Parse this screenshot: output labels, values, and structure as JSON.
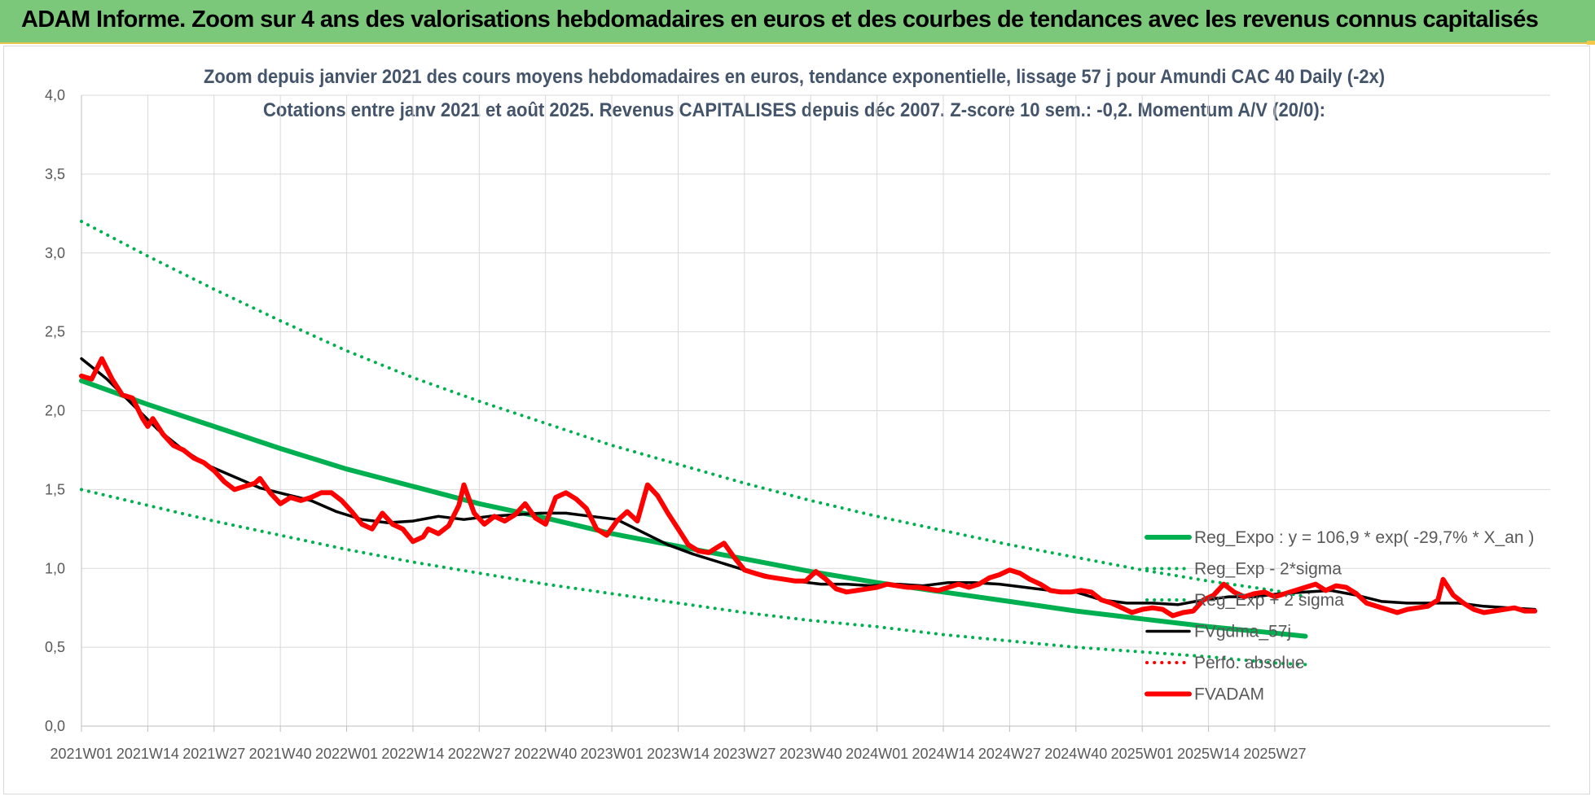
{
  "header": {
    "title": "ADAM Informe. Zoom sur 4 ans des valorisations hebdomadaires en euros et des courbes de tendances avec les revenus connus capitalisés"
  },
  "chart_data": {
    "type": "line",
    "title": "Zoom depuis janvier 2021 des cours moyens hebdomadaires en euros, tendance exponentielle, lissage 57 j pour Amundi CAC 40 Daily (-2x)",
    "subtitle": "Cotations entre janv 2021 et août 2025. Revenus CAPITALISES depuis déc 2007. Z-score 10 sem.: -0,2. Momentum A/V (20/0):",
    "xlabel": "",
    "ylabel": "",
    "ylim": [
      0,
      4
    ],
    "yticks": [
      "0,0",
      "0,5",
      "1,0",
      "1,5",
      "2,0",
      "2,5",
      "3,0",
      "3,5",
      "4,0"
    ],
    "xticks": [
      "2021W01",
      "2021W14",
      "2021W27",
      "2021W40",
      "2022W01",
      "2022W14",
      "2022W27",
      "2022W40",
      "2023W01",
      "2023W14",
      "2023W27",
      "2023W40",
      "2024W01",
      "2024W14",
      "2024W27",
      "2024W40",
      "2025W01",
      "2025W14",
      "2025W27"
    ],
    "grid": true,
    "legend_position": "right",
    "colors": {
      "green": "#00b050",
      "red": "#ff0000",
      "black": "#000000"
    },
    "series": [
      {
        "name": "Reg_Expo : y = 106,9 * exp( -29,7% * X_an )",
        "style": "solid-thick",
        "color": "#00b050",
        "points": [
          [
            0,
            2.19
          ],
          [
            13,
            2.04
          ],
          [
            26,
            1.9
          ],
          [
            39,
            1.76
          ],
          [
            52,
            1.63
          ],
          [
            65,
            1.52
          ],
          [
            78,
            1.41
          ],
          [
            91,
            1.32
          ],
          [
            104,
            1.22
          ],
          [
            117,
            1.14
          ],
          [
            130,
            1.06
          ],
          [
            143,
            0.98
          ],
          [
            156,
            0.91
          ],
          [
            169,
            0.85
          ],
          [
            182,
            0.79
          ],
          [
            195,
            0.73
          ],
          [
            208,
            0.68
          ],
          [
            221,
            0.63
          ],
          [
            234,
            0.59
          ],
          [
            240,
            0.57
          ]
        ]
      },
      {
        "name": "Reg_Exp - 2*sigma",
        "style": "dotted",
        "color": "#00b050",
        "points": [
          [
            0,
            1.5
          ],
          [
            13,
            1.4
          ],
          [
            26,
            1.3
          ],
          [
            39,
            1.21
          ],
          [
            52,
            1.12
          ],
          [
            65,
            1.04
          ],
          [
            78,
            0.97
          ],
          [
            91,
            0.9
          ],
          [
            104,
            0.84
          ],
          [
            117,
            0.78
          ],
          [
            130,
            0.72
          ],
          [
            143,
            0.67
          ],
          [
            156,
            0.63
          ],
          [
            169,
            0.58
          ],
          [
            182,
            0.54
          ],
          [
            195,
            0.5
          ],
          [
            208,
            0.47
          ],
          [
            221,
            0.44
          ],
          [
            234,
            0.4
          ],
          [
            240,
            0.39
          ]
        ]
      },
      {
        "name": "Reg_Exp + 2 sigma",
        "style": "dotted",
        "color": "#00b050",
        "points": [
          [
            0,
            3.2
          ],
          [
            13,
            2.98
          ],
          [
            26,
            2.77
          ],
          [
            39,
            2.57
          ],
          [
            52,
            2.38
          ],
          [
            65,
            2.21
          ],
          [
            78,
            2.06
          ],
          [
            91,
            1.92
          ],
          [
            104,
            1.78
          ],
          [
            117,
            1.66
          ],
          [
            130,
            1.54
          ],
          [
            143,
            1.43
          ],
          [
            156,
            1.33
          ],
          [
            169,
            1.24
          ],
          [
            182,
            1.15
          ],
          [
            195,
            1.07
          ],
          [
            208,
            0.99
          ],
          [
            221,
            0.92
          ],
          [
            234,
            0.86
          ],
          [
            240,
            0.82
          ]
        ]
      },
      {
        "name": "FVgdma_57j",
        "style": "solid",
        "color": "#000000",
        "points": [
          [
            0,
            2.33
          ],
          [
            5,
            2.2
          ],
          [
            10,
            2.04
          ],
          [
            15,
            1.88
          ],
          [
            20,
            1.75
          ],
          [
            25,
            1.65
          ],
          [
            30,
            1.58
          ],
          [
            35,
            1.51
          ],
          [
            40,
            1.47
          ],
          [
            45,
            1.43
          ],
          [
            50,
            1.36
          ],
          [
            55,
            1.31
          ],
          [
            60,
            1.29
          ],
          [
            65,
            1.3
          ],
          [
            70,
            1.33
          ],
          [
            75,
            1.31
          ],
          [
            80,
            1.33
          ],
          [
            85,
            1.34
          ],
          [
            90,
            1.35
          ],
          [
            95,
            1.35
          ],
          [
            100,
            1.33
          ],
          [
            105,
            1.31
          ],
          [
            110,
            1.23
          ],
          [
            115,
            1.15
          ],
          [
            120,
            1.09
          ],
          [
            125,
            1.04
          ],
          [
            130,
            0.99
          ],
          [
            135,
            0.95
          ],
          [
            140,
            0.92
          ],
          [
            145,
            0.9
          ],
          [
            150,
            0.9
          ],
          [
            155,
            0.89
          ],
          [
            160,
            0.9
          ],
          [
            165,
            0.89
          ],
          [
            170,
            0.91
          ],
          [
            175,
            0.91
          ],
          [
            180,
            0.9
          ],
          [
            185,
            0.88
          ],
          [
            190,
            0.86
          ],
          [
            195,
            0.85
          ],
          [
            200,
            0.8
          ],
          [
            205,
            0.78
          ],
          [
            210,
            0.78
          ],
          [
            215,
            0.77
          ],
          [
            220,
            0.8
          ],
          [
            225,
            0.82
          ],
          [
            230,
            0.82
          ],
          [
            235,
            0.84
          ],
          [
            240,
            0.85
          ],
          [
            245,
            0.86
          ],
          [
            250,
            0.83
          ],
          [
            255,
            0.79
          ],
          [
            260,
            0.78
          ],
          [
            265,
            0.78
          ],
          [
            270,
            0.78
          ],
          [
            275,
            0.76
          ],
          [
            280,
            0.75
          ],
          [
            285,
            0.74
          ]
        ]
      },
      {
        "name": "Perfo. absolue",
        "style": "dotted",
        "color": "#ff0000",
        "points": []
      },
      {
        "name": "FVADAM",
        "style": "solid-thick",
        "color": "#ff0000",
        "points": [
          [
            0,
            2.22
          ],
          [
            2,
            2.2
          ],
          [
            4,
            2.33
          ],
          [
            6,
            2.2
          ],
          [
            8,
            2.1
          ],
          [
            10,
            2.08
          ],
          [
            12,
            1.95
          ],
          [
            13,
            1.9
          ],
          [
            14,
            1.95
          ],
          [
            16,
            1.85
          ],
          [
            18,
            1.78
          ],
          [
            20,
            1.75
          ],
          [
            22,
            1.7
          ],
          [
            24,
            1.67
          ],
          [
            26,
            1.62
          ],
          [
            28,
            1.55
          ],
          [
            30,
            1.5
          ],
          [
            32,
            1.52
          ],
          [
            34,
            1.54
          ],
          [
            35,
            1.57
          ],
          [
            37,
            1.48
          ],
          [
            39,
            1.41
          ],
          [
            41,
            1.45
          ],
          [
            43,
            1.43
          ],
          [
            45,
            1.45
          ],
          [
            47,
            1.48
          ],
          [
            49,
            1.48
          ],
          [
            51,
            1.43
          ],
          [
            53,
            1.36
          ],
          [
            55,
            1.28
          ],
          [
            57,
            1.25
          ],
          [
            59,
            1.35
          ],
          [
            61,
            1.28
          ],
          [
            63,
            1.25
          ],
          [
            65,
            1.17
          ],
          [
            67,
            1.2
          ],
          [
            68,
            1.25
          ],
          [
            70,
            1.22
          ],
          [
            72,
            1.27
          ],
          [
            74,
            1.4
          ],
          [
            75,
            1.53
          ],
          [
            77,
            1.35
          ],
          [
            79,
            1.28
          ],
          [
            81,
            1.33
          ],
          [
            83,
            1.3
          ],
          [
            85,
            1.34
          ],
          [
            87,
            1.41
          ],
          [
            89,
            1.32
          ],
          [
            91,
            1.28
          ],
          [
            93,
            1.45
          ],
          [
            95,
            1.48
          ],
          [
            97,
            1.44
          ],
          [
            99,
            1.38
          ],
          [
            101,
            1.25
          ],
          [
            103,
            1.21
          ],
          [
            105,
            1.3
          ],
          [
            107,
            1.36
          ],
          [
            109,
            1.3
          ],
          [
            111,
            1.53
          ],
          [
            113,
            1.46
          ],
          [
            115,
            1.35
          ],
          [
            117,
            1.25
          ],
          [
            119,
            1.15
          ],
          [
            121,
            1.11
          ],
          [
            123,
            1.1
          ],
          [
            125,
            1.14
          ],
          [
            126,
            1.16
          ],
          [
            128,
            1.07
          ],
          [
            130,
            0.99
          ],
          [
            132,
            0.97
          ],
          [
            134,
            0.95
          ],
          [
            136,
            0.94
          ],
          [
            138,
            0.93
          ],
          [
            140,
            0.92
          ],
          [
            142,
            0.92
          ],
          [
            144,
            0.98
          ],
          [
            146,
            0.93
          ],
          [
            148,
            0.87
          ],
          [
            150,
            0.85
          ],
          [
            152,
            0.86
          ],
          [
            154,
            0.87
          ],
          [
            156,
            0.88
          ],
          [
            158,
            0.9
          ],
          [
            160,
            0.89
          ],
          [
            162,
            0.88
          ],
          [
            164,
            0.88
          ],
          [
            166,
            0.87
          ],
          [
            168,
            0.86
          ],
          [
            170,
            0.88
          ],
          [
            172,
            0.9
          ],
          [
            174,
            0.88
          ],
          [
            176,
            0.9
          ],
          [
            178,
            0.94
          ],
          [
            180,
            0.96
          ],
          [
            182,
            0.99
          ],
          [
            184,
            0.97
          ],
          [
            186,
            0.93
          ],
          [
            188,
            0.9
          ],
          [
            190,
            0.86
          ],
          [
            192,
            0.85
          ],
          [
            194,
            0.85
          ],
          [
            196,
            0.86
          ],
          [
            198,
            0.85
          ],
          [
            200,
            0.8
          ],
          [
            202,
            0.78
          ],
          [
            204,
            0.75
          ],
          [
            206,
            0.72
          ],
          [
            208,
            0.74
          ],
          [
            210,
            0.75
          ],
          [
            212,
            0.74
          ],
          [
            214,
            0.7
          ],
          [
            216,
            0.72
          ],
          [
            218,
            0.73
          ],
          [
            220,
            0.8
          ],
          [
            222,
            0.83
          ],
          [
            224,
            0.9
          ],
          [
            226,
            0.85
          ],
          [
            228,
            0.82
          ],
          [
            230,
            0.84
          ],
          [
            232,
            0.85
          ],
          [
            234,
            0.82
          ],
          [
            236,
            0.84
          ],
          [
            238,
            0.86
          ],
          [
            240,
            0.88
          ],
          [
            242,
            0.9
          ],
          [
            244,
            0.86
          ],
          [
            246,
            0.89
          ],
          [
            248,
            0.88
          ],
          [
            250,
            0.84
          ],
          [
            252,
            0.78
          ],
          [
            254,
            0.76
          ],
          [
            256,
            0.74
          ],
          [
            258,
            0.72
          ],
          [
            260,
            0.74
          ],
          [
            262,
            0.75
          ],
          [
            264,
            0.76
          ],
          [
            266,
            0.8
          ],
          [
            267,
            0.93
          ],
          [
            269,
            0.83
          ],
          [
            271,
            0.78
          ],
          [
            273,
            0.74
          ],
          [
            275,
            0.72
          ],
          [
            277,
            0.73
          ],
          [
            279,
            0.74
          ],
          [
            281,
            0.75
          ],
          [
            283,
            0.73
          ],
          [
            285,
            0.73
          ]
        ]
      }
    ]
  }
}
